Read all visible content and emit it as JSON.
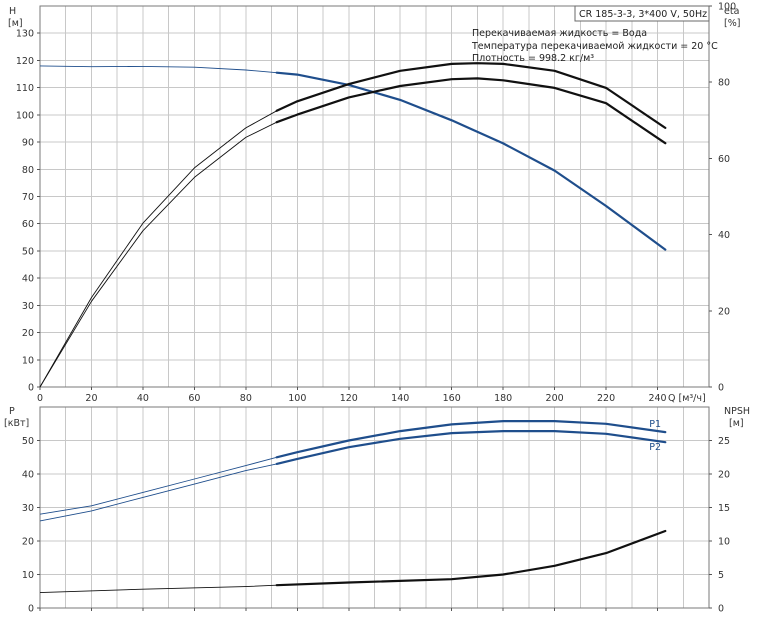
{
  "chart_data": [
    {
      "type": "line",
      "panel": "head-efficiency",
      "model": "CR 185-3-3, 3*400 V, 50Hz",
      "info_lines": [
        "Перекачиваемая жидкость = Вода",
        "Температура перекачиваемой жидкости = 20 °C",
        "Плотность = 998.2 кг/м³"
      ],
      "y_left_label": [
        "H",
        "[м]"
      ],
      "y_right_label": [
        "eta",
        "[%]"
      ],
      "x_label": "Q [м³/ч]",
      "xlim": [
        0,
        260
      ],
      "x_ticks": [
        0,
        20,
        40,
        60,
        80,
        100,
        120,
        140,
        160,
        180,
        200,
        220,
        240
      ],
      "ylim": [
        0,
        140
      ],
      "y_ticks": [
        0,
        10,
        20,
        30,
        40,
        50,
        60,
        70,
        80,
        90,
        100,
        110,
        120,
        130
      ],
      "y2lim": [
        0,
        100
      ],
      "y2_ticks": [
        0,
        20,
        40,
        60,
        80,
        100
      ],
      "grid": true,
      "series": [
        {
          "id": "H",
          "color": "#1f4e8c",
          "thin_end_x": 92,
          "x": [
            0,
            20,
            40,
            60,
            80,
            92,
            100,
            120,
            140,
            160,
            180,
            200,
            220,
            243
          ],
          "y": [
            118,
            117.7,
            117.8,
            117.5,
            116.5,
            115.5,
            114.8,
            111,
            105.5,
            98,
            89.5,
            79.5,
            66.5,
            50.5
          ]
        },
        {
          "id": "eta-1",
          "axis": "y2",
          "color": "#111111",
          "thin_end_x": 92,
          "x": [
            0,
            20,
            40,
            60,
            80,
            92,
            100,
            120,
            140,
            160,
            170,
            180,
            200,
            220,
            243
          ],
          "y": [
            0,
            23.5,
            43,
            57.5,
            68,
            72.5,
            75,
            79.5,
            83,
            84.8,
            85,
            84.8,
            83,
            78.5,
            68
          ]
        },
        {
          "id": "eta-2",
          "axis": "y2",
          "color": "#111111",
          "thin_end_x": 92,
          "x": [
            0,
            20,
            40,
            60,
            80,
            92,
            100,
            120,
            140,
            160,
            170,
            180,
            200,
            220,
            243
          ],
          "y": [
            0,
            22.5,
            41,
            55,
            65.5,
            69.5,
            71.5,
            76,
            79,
            80.8,
            81,
            80.5,
            78.5,
            74.5,
            64
          ]
        }
      ]
    },
    {
      "type": "line",
      "panel": "power-npsh",
      "y_left_label": [
        "P",
        "[кВт]"
      ],
      "y_right_label": [
        "NPSH",
        "[м]"
      ],
      "xlim": [
        0,
        260
      ],
      "x_ticks": [
        0,
        20,
        40,
        60,
        80,
        100,
        120,
        140,
        160,
        180,
        200,
        220,
        240
      ],
      "ylim": [
        0,
        60
      ],
      "y_ticks": [
        0,
        10,
        20,
        30,
        40,
        50
      ],
      "y2lim": [
        0,
        30
      ],
      "y2_ticks": [
        0,
        5,
        10,
        15,
        20,
        25
      ],
      "grid": true,
      "series": [
        {
          "id": "P1",
          "name": "P1",
          "color": "#1f4e8c",
          "thin_end_x": 92,
          "x": [
            0,
            20,
            40,
            60,
            80,
            92,
            100,
            120,
            140,
            160,
            180,
            200,
            220,
            243
          ],
          "y": [
            28,
            30.5,
            34.5,
            38.5,
            42.5,
            45,
            46.5,
            50,
            52.8,
            54.8,
            55.8,
            55.8,
            55,
            52.5
          ]
        },
        {
          "id": "P2",
          "name": "P2",
          "color": "#1f4e8c",
          "thin_end_x": 92,
          "x": [
            0,
            20,
            40,
            60,
            80,
            92,
            100,
            120,
            140,
            160,
            180,
            200,
            220,
            243
          ],
          "y": [
            26,
            29,
            33,
            37,
            41,
            43,
            44.5,
            48,
            50.5,
            52.2,
            52.8,
            52.8,
            52,
            49.5
          ]
        },
        {
          "id": "NPSH",
          "axis": "y2",
          "color": "#111111",
          "thin_end_x": 92,
          "x": [
            0,
            40,
            80,
            92,
            120,
            160,
            180,
            200,
            220,
            243
          ],
          "y": [
            2.3,
            2.8,
            3.2,
            3.4,
            3.8,
            4.3,
            5,
            6.3,
            8.2,
            11.5
          ]
        }
      ]
    }
  ]
}
